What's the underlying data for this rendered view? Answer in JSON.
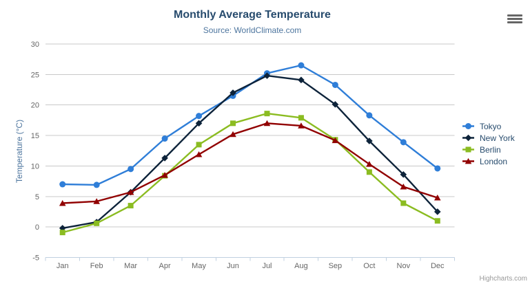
{
  "credit": "Highcharts.com",
  "chart_data": {
    "type": "line",
    "title": "Monthly Average Temperature",
    "subtitle": "Source: WorldClimate.com",
    "ylabel": "Temperature (°C)",
    "xlabel": "",
    "categories": [
      "Jan",
      "Feb",
      "Mar",
      "Apr",
      "May",
      "Jun",
      "Jul",
      "Aug",
      "Sep",
      "Oct",
      "Nov",
      "Dec"
    ],
    "series": [
      {
        "name": "Tokyo",
        "color": "#2f7ed8",
        "marker": "circle",
        "values": [
          7.0,
          6.9,
          9.5,
          14.5,
          18.2,
          21.5,
          25.2,
          26.5,
          23.3,
          18.3,
          13.9,
          9.6
        ]
      },
      {
        "name": "New York",
        "color": "#0d233a",
        "marker": "diamond",
        "values": [
          -0.2,
          0.8,
          5.7,
          11.3,
          17.0,
          22.0,
          24.8,
          24.1,
          20.1,
          14.1,
          8.6,
          2.5
        ]
      },
      {
        "name": "Berlin",
        "color": "#8bbc21",
        "marker": "square",
        "values": [
          -0.9,
          0.6,
          3.5,
          8.4,
          13.5,
          17.0,
          18.6,
          17.9,
          14.3,
          9.0,
          3.9,
          1.0
        ]
      },
      {
        "name": "London",
        "color": "#910000",
        "marker": "triangle",
        "values": [
          3.9,
          4.2,
          5.7,
          8.5,
          11.9,
          15.2,
          17.0,
          16.6,
          14.2,
          10.3,
          6.6,
          4.8
        ]
      }
    ],
    "ylim": [
      -5,
      30
    ],
    "ytick_interval": 5,
    "grid": true,
    "legend_position": "right"
  },
  "colors": {
    "grid": "#c8c8c8",
    "axis_line": "#c0d0e0",
    "tick_label": "#666666",
    "title": "#274b6d",
    "subtitle": "#4d759e",
    "axis_title": "#4d759e",
    "legend_text": "#274b6d",
    "credit": "#999999",
    "background": "#ffffff"
  }
}
